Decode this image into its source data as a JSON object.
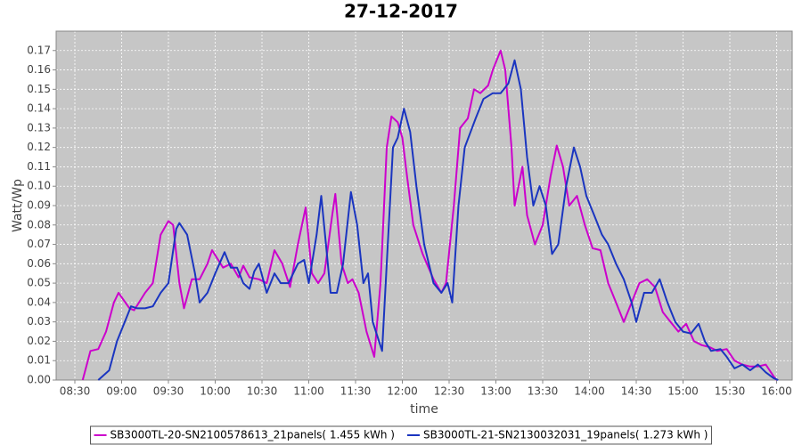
{
  "chart_data": {
    "type": "line",
    "title": "27-12-2017",
    "x_label": "time",
    "y_label": "Watt/Wp",
    "xlim": [
      "08:18",
      "16:10"
    ],
    "xticks": [
      "08:30",
      "09:00",
      "09:30",
      "10:00",
      "10:30",
      "11:00",
      "11:30",
      "12:00",
      "12:30",
      "13:00",
      "13:30",
      "14:00",
      "14:30",
      "15:00",
      "15:30",
      "16:00"
    ],
    "ylim": [
      0,
      0.18
    ],
    "yticks": [
      {
        "value": 0,
        "label": "0.00"
      },
      {
        "value": 0.01,
        "label": "0.01"
      },
      {
        "value": 0.02,
        "label": "0.02"
      },
      {
        "value": 0.03,
        "label": "0.03"
      },
      {
        "value": 0.04,
        "label": "0.04"
      },
      {
        "value": 0.05,
        "label": "0.05"
      },
      {
        "value": 0.06,
        "label": "0.06"
      },
      {
        "value": 0.07,
        "label": "0.07"
      },
      {
        "value": 0.08,
        "label": "0.08"
      },
      {
        "value": 0.09,
        "label": "0.09"
      },
      {
        "value": 0.1,
        "label": "0.10"
      },
      {
        "value": 0.11,
        "label": "0.11"
      },
      {
        "value": 0.12,
        "label": "0.12"
      },
      {
        "value": 0.13,
        "label": "0.13"
      },
      {
        "value": 0.14,
        "label": "0.14"
      },
      {
        "value": 0.15,
        "label": "0.15"
      },
      {
        "value": 0.16,
        "label": "0.16"
      },
      {
        "value": 0.17,
        "label": "0.17"
      }
    ],
    "grid": true,
    "legend": "bottom",
    "series": [
      {
        "name": "SB3000TL-20-SN2100578613_21panels( 1.455 kWh )",
        "color": "#cc00cc",
        "x": [
          "08:35",
          "08:40",
          "08:45",
          "08:50",
          "08:55",
          "08:58",
          "09:05",
          "09:08",
          "09:15",
          "09:20",
          "09:25",
          "09:30",
          "09:33",
          "09:37",
          "09:40",
          "09:45",
          "09:50",
          "09:55",
          "09:58",
          "10:05",
          "10:10",
          "10:15",
          "10:18",
          "10:22",
          "10:28",
          "10:33",
          "10:38",
          "10:43",
          "10:48",
          "10:53",
          "10:58",
          "11:02",
          "11:06",
          "11:10",
          "11:15",
          "11:17",
          "11:21",
          "11:25",
          "11:28",
          "11:32",
          "11:37",
          "11:42",
          "11:46",
          "11:50",
          "11:53",
          "11:57",
          "12:00",
          "12:03",
          "12:07",
          "12:13",
          "12:20",
          "12:25",
          "12:28",
          "12:33",
          "12:37",
          "12:42",
          "12:46",
          "12:50",
          "12:55",
          "12:58",
          "13:03",
          "13:06",
          "13:10",
          "13:12",
          "13:17",
          "13:20",
          "13:25",
          "13:30",
          "13:35",
          "13:39",
          "13:43",
          "13:47",
          "13:52",
          "13:57",
          "14:02",
          "14:07",
          "14:12",
          "14:17",
          "14:22",
          "14:27",
          "14:32",
          "14:37",
          "14:42",
          "14:47",
          "14:52",
          "14:57",
          "15:02",
          "15:07",
          "15:12",
          "15:17",
          "15:22",
          "15:28",
          "15:33",
          "15:38",
          "15:43",
          "15:48",
          "15:53",
          "15:58",
          "16:00"
        ],
        "values": [
          0,
          0.015,
          0.016,
          0.025,
          0.04,
          0.045,
          0.037,
          0.036,
          0.045,
          0.05,
          0.075,
          0.082,
          0.08,
          0.05,
          0.037,
          0.052,
          0.052,
          0.06,
          0.067,
          0.058,
          0.06,
          0.053,
          0.059,
          0.053,
          0.052,
          0.05,
          0.067,
          0.06,
          0.048,
          0.07,
          0.089,
          0.055,
          0.05,
          0.055,
          0.085,
          0.096,
          0.06,
          0.05,
          0.052,
          0.045,
          0.025,
          0.012,
          0.05,
          0.12,
          0.136,
          0.133,
          0.125,
          0.105,
          0.08,
          0.065,
          0.052,
          0.045,
          0.05,
          0.09,
          0.13,
          0.135,
          0.15,
          0.148,
          0.152,
          0.16,
          0.17,
          0.16,
          0.12,
          0.09,
          0.11,
          0.085,
          0.07,
          0.08,
          0.105,
          0.121,
          0.11,
          0.09,
          0.095,
          0.08,
          0.068,
          0.067,
          0.05,
          0.04,
          0.03,
          0.04,
          0.05,
          0.052,
          0.048,
          0.035,
          0.03,
          0.025,
          0.029,
          0.02,
          0.018,
          0.017,
          0.015,
          0.016,
          0.01,
          0.008,
          0.007,
          0.007,
          0.008,
          0.002,
          0
        ]
      },
      {
        "name": "SB3000TL-21-SN2130032031_19panels( 1.273 kWh )",
        "color": "#1a35c0",
        "x": [
          "08:45",
          "08:52",
          "08:57",
          "09:02",
          "09:06",
          "09:10",
          "09:15",
          "09:20",
          "09:25",
          "09:30",
          "09:35",
          "09:37",
          "09:42",
          "09:47",
          "09:50",
          "09:55",
          "10:00",
          "10:06",
          "10:10",
          "10:14",
          "10:18",
          "10:22",
          "10:25",
          "10:28",
          "10:33",
          "10:38",
          "10:42",
          "10:47",
          "10:53",
          "10:57",
          "11:00",
          "11:05",
          "11:08",
          "11:11",
          "11:14",
          "11:18",
          "11:22",
          "11:27",
          "11:31",
          "11:35",
          "11:38",
          "11:41",
          "11:45",
          "11:47",
          "11:50",
          "11:54",
          "11:57",
          "12:01",
          "12:05",
          "12:09",
          "12:14",
          "12:20",
          "12:25",
          "12:29",
          "12:32",
          "12:36",
          "12:40",
          "12:47",
          "12:52",
          "12:58",
          "13:03",
          "13:08",
          "13:12",
          "13:16",
          "13:20",
          "13:24",
          "13:28",
          "13:32",
          "13:36",
          "13:40",
          "13:45",
          "13:50",
          "13:54",
          "13:58",
          "14:03",
          "14:08",
          "14:12",
          "14:17",
          "14:22",
          "14:27",
          "14:30",
          "14:35",
          "14:40",
          "14:45",
          "14:50",
          "14:55",
          "15:00",
          "15:05",
          "15:10",
          "15:14",
          "15:18",
          "15:24",
          "15:28",
          "15:33",
          "15:38",
          "15:43",
          "15:48",
          "15:53",
          "15:58",
          "16:01"
        ],
        "values": [
          0,
          0.005,
          0.02,
          0.03,
          0.038,
          0.037,
          0.037,
          0.038,
          0.045,
          0.05,
          0.078,
          0.081,
          0.075,
          0.055,
          0.04,
          0.045,
          0.055,
          0.066,
          0.058,
          0.058,
          0.05,
          0.047,
          0.056,
          0.06,
          0.045,
          0.055,
          0.05,
          0.05,
          0.06,
          0.062,
          0.05,
          0.075,
          0.095,
          0.07,
          0.045,
          0.045,
          0.06,
          0.097,
          0.08,
          0.05,
          0.055,
          0.03,
          0.02,
          0.015,
          0.06,
          0.12,
          0.125,
          0.14,
          0.128,
          0.1,
          0.07,
          0.05,
          0.045,
          0.05,
          0.04,
          0.09,
          0.12,
          0.135,
          0.145,
          0.148,
          0.148,
          0.153,
          0.165,
          0.15,
          0.115,
          0.09,
          0.1,
          0.09,
          0.065,
          0.07,
          0.1,
          0.12,
          0.11,
          0.095,
          0.085,
          0.075,
          0.07,
          0.06,
          0.052,
          0.04,
          0.03,
          0.045,
          0.045,
          0.052,
          0.04,
          0.03,
          0.025,
          0.024,
          0.029,
          0.02,
          0.015,
          0.016,
          0.012,
          0.006,
          0.008,
          0.005,
          0.008,
          0.004,
          0.001,
          0
        ]
      }
    ]
  }
}
